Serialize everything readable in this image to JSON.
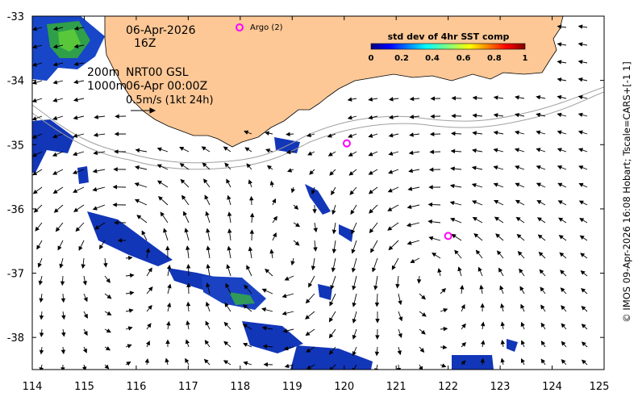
{
  "map": {
    "x_ticks": [
      "114",
      "115",
      "116",
      "117",
      "118",
      "119",
      "120",
      "121",
      "122",
      "123",
      "124",
      "125"
    ],
    "y_ticks": [
      "-33",
      "-34",
      "-35",
      "-36",
      "-37",
      "-38"
    ],
    "lon_range": [
      114,
      125
    ],
    "lat_range": [
      -38.5,
      -33
    ],
    "colors": {
      "land": "#fdc896",
      "coastline": "#000000",
      "argo": "#ff00ff",
      "contour": "#a0a0a0",
      "sst_low": "#00007f",
      "sst_high": "#7f0000"
    }
  },
  "annotations": {
    "date": "06-Apr-2026",
    "hour": "16Z",
    "contours_label_1": "200m",
    "contours_label_2": "1000m",
    "product": "NRT00 GSL",
    "product_time": "06-Apr 00:00Z",
    "scale_label": "0.5m/s (1kt 24h)"
  },
  "argo": {
    "legend_label": "Argo (2)",
    "floats": [
      {
        "lon": 120.05,
        "lat": -34.98
      },
      {
        "lon": 122.0,
        "lat": -36.42
      }
    ]
  },
  "colorbar": {
    "title": "std dev of 4hr SST comp",
    "ticks": [
      "0",
      "0.2",
      "0.4",
      "0.6",
      "0.8",
      "1"
    ],
    "range": [
      0,
      1
    ]
  },
  "credit": "© IMOS 09-Apr-2026 16:08 Hobart; Tscale=CARS+[-1 1]"
}
